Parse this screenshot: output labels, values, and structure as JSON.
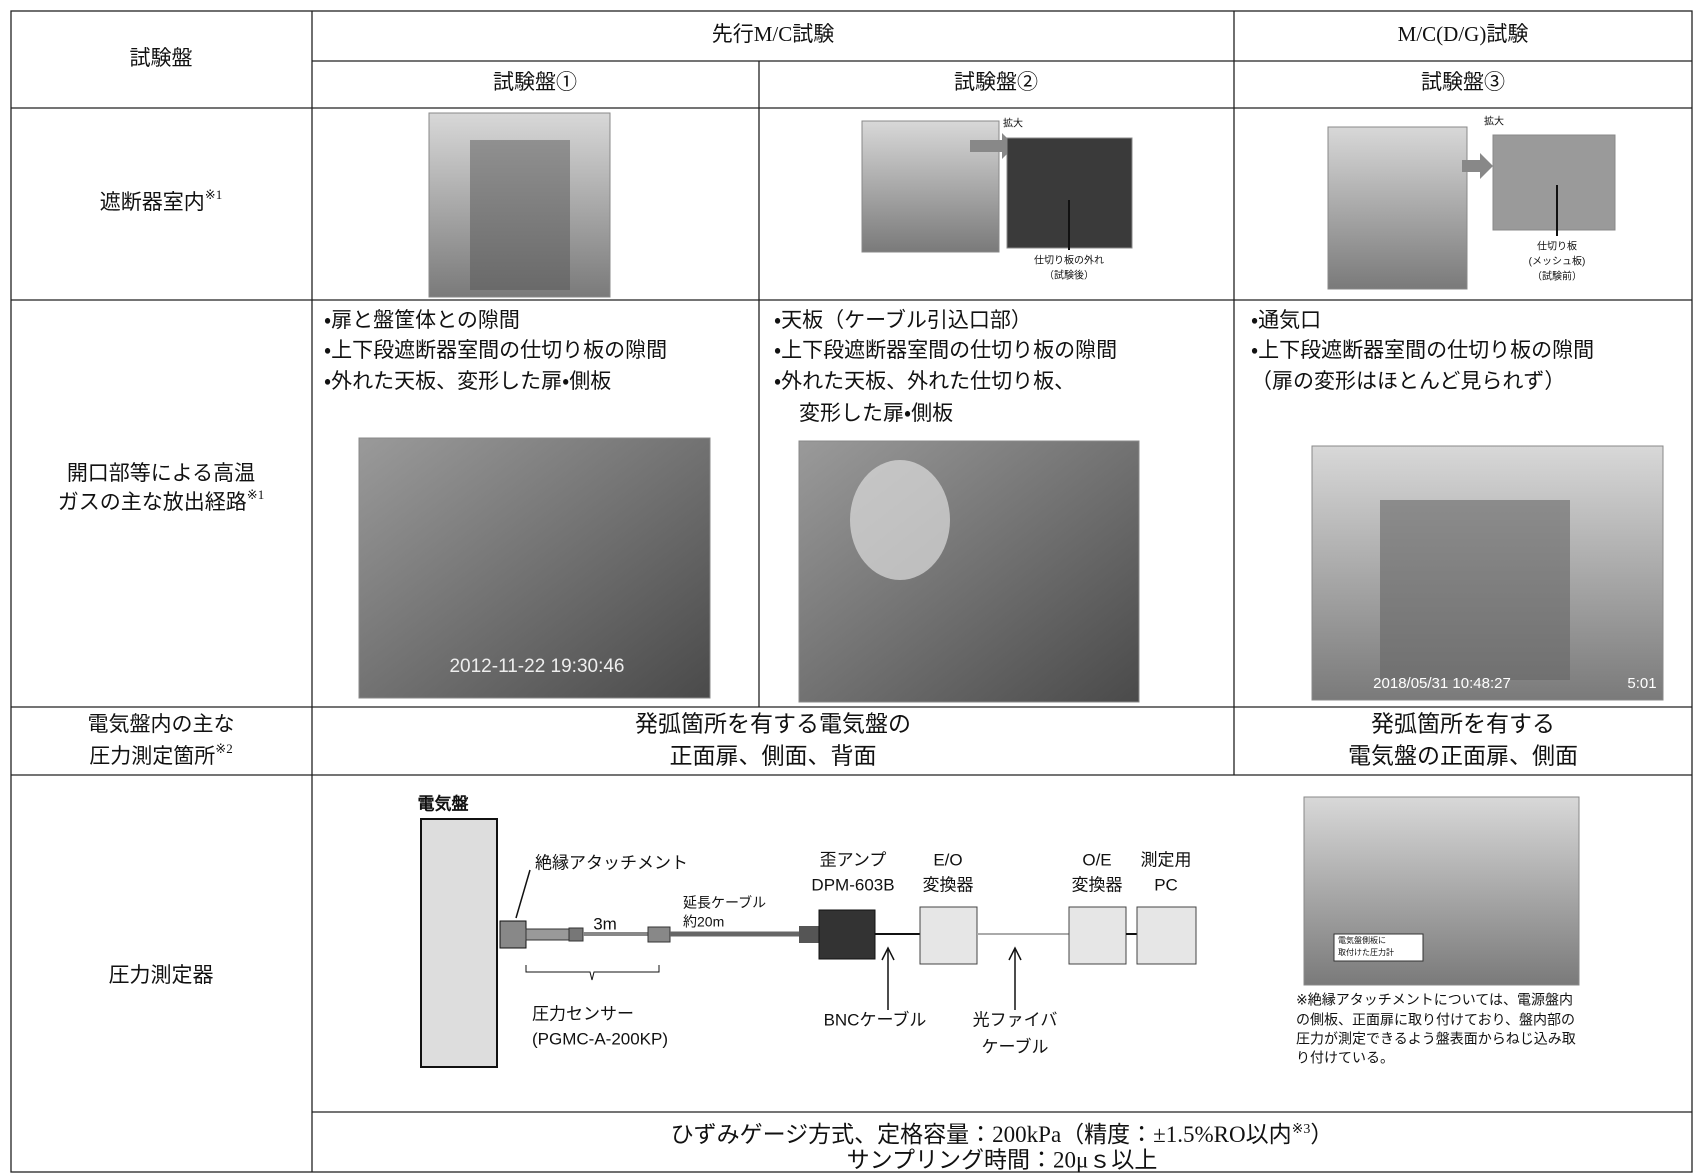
{
  "header": {
    "corner": "試験盤",
    "groups": [
      "先行M/C試験",
      "M/C(D/G)試験"
    ],
    "panels": [
      "試験盤①",
      "試験盤②",
      "試験盤③"
    ]
  },
  "rows": [
    {
      "label": "遮断器室内",
      "note": "※1",
      "panel_2_photo": {
        "callout": "拡大",
        "caption": [
          "仕切り板の外れ",
          "（試験後）"
        ]
      },
      "panel_3_photo": {
        "callout": "拡大",
        "caption": [
          "仕切り板",
          "(メッシュ板)",
          "（試験前）"
        ]
      }
    },
    {
      "label": [
        "開口部等による高温",
        "ガスの主な放出経路"
      ],
      "note": "※1",
      "routes": [
        [
          "・扉と盤筐体との隙間",
          "・上下段遮断器室間の仕切り板の隙間",
          "・外れた天板、変形した扉・側板"
        ],
        [
          "・天板（ケーブル引込口部）",
          "・上下段遮断器室間の仕切り板の隙間",
          "・外れた天板、外れた仕切り板、",
          "変形した扉・側板"
        ],
        [
          "・通気口",
          "・上下段遮断器室間の仕切り板の隙間",
          "（扉の変形はほとんど見られず）"
        ]
      ],
      "timestamps": [
        "2012-11-22 19:30:46",
        "2018/05/31 10:48:27",
        "5:01"
      ]
    },
    {
      "label": [
        "電気盤内の主な",
        "圧力測定箇所"
      ],
      "note": "※2",
      "locations": [
        [
          "発弧箇所を有する電気盤の",
          "正面扉、側面、背面"
        ],
        [
          "発弧箇所を有する",
          "電気盤の正面扉、側面"
        ]
      ]
    },
    {
      "label": "圧力測定器",
      "diagram": {
        "panel": "電気盤",
        "attachment": "絶縁アタッチメント",
        "sensor_cable": "3m",
        "extension": [
          "延長ケーブル",
          "約20m"
        ],
        "sensor": [
          "圧力センサー",
          "(PGMC-A-200KP)"
        ],
        "amp": [
          "歪アンプ",
          "DPM-603B"
        ],
        "eo": [
          "E/O",
          "変換器"
        ],
        "oe": [
          "O/E",
          "変換器"
        ],
        "pc": [
          "測定用",
          "PC"
        ],
        "bnc": "BNCケーブル",
        "fiber": [
          "光ファイバ",
          "ケーブル"
        ]
      },
      "photo_caption": [
        "電気盤側板に",
        "取付けた圧力計"
      ],
      "photo_note": [
        "※絶縁アタッチメントについては、電源盤内",
        "の側板、正面扉に取り付けており、盤内部の",
        "圧力が測定できるよう盤表面からねじ込み取",
        "り付けている。"
      ],
      "spec": {
        "line1": "ひずみゲージ方式、定格容量：200kPa（精度：±1.5%RO以内",
        "note": "※3",
        "close": "）",
        "line2": "サンプリング時間：20μｓ以上"
      }
    }
  ]
}
